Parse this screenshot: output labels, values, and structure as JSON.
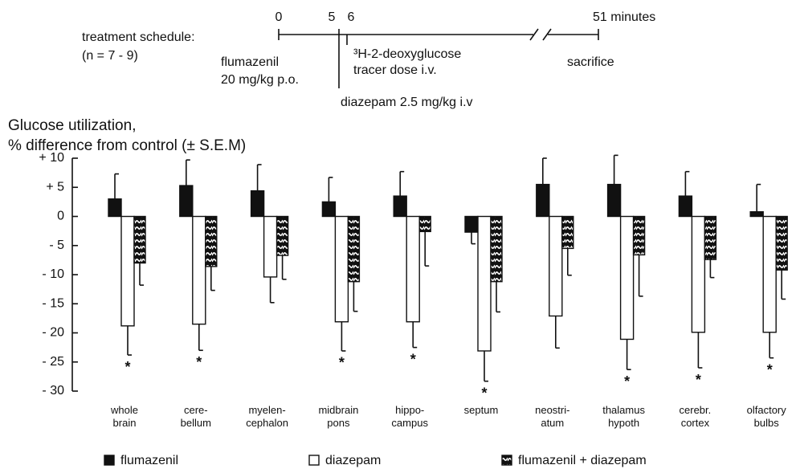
{
  "schedule": {
    "title": "treatment schedule:",
    "n": "(n = 7 - 9)",
    "timeline_labels": [
      "0",
      "5",
      "6",
      "51 minutes"
    ],
    "flumazenil_lines": [
      "flumazenil",
      "20 mg/kg p.o."
    ],
    "tracer_lines": [
      "³H-2-deoxyglucose",
      "tracer dose i.v."
    ],
    "sacrifice": "sacrifice",
    "diazepam": "diazepam 2.5 mg/kg i.v"
  },
  "chart_data": {
    "type": "bar",
    "ylabel_lines": [
      "Glucose utilization,",
      "% difference from control  (± S.E.M)"
    ],
    "categories": [
      "whole\nbrain",
      "cere-\nbellum",
      "myelen-\ncephalon",
      "midbrain\npons",
      "hippo-\ncampus",
      "septum",
      "neostri-\natum",
      "thalamus\nhypoth",
      "cerebr.\ncortex",
      "olfactory\nbulbs"
    ],
    "series": [
      {
        "name": "flumazenil",
        "color": "#111111",
        "hatched": false,
        "values": [
          3,
          5.3,
          4.4,
          2.5,
          3.5,
          -2.7,
          5.5,
          5.5,
          3.5,
          0.8
        ],
        "errors": [
          4.3,
          4.4,
          4.5,
          4.2,
          4.2,
          2,
          4.5,
          5,
          4.2,
          4.7
        ]
      },
      {
        "name": "diazepam",
        "color": "#ffffff",
        "hatched": false,
        "values": [
          -18.8,
          -18.5,
          -10.4,
          -18.1,
          -18.1,
          -23.1,
          -17.1,
          -21.1,
          -19.9,
          -19.9
        ],
        "errors": [
          5,
          4.5,
          4.4,
          5,
          4.4,
          5.2,
          5.5,
          5.2,
          6.1,
          4.4
        ]
      },
      {
        "name": "flumazenil + diazepam",
        "color": "#111111",
        "hatched": true,
        "values": [
          -8,
          -8.6,
          -6.7,
          -11.2,
          -2.6,
          -11.2,
          -5.5,
          -6.6,
          -7.4,
          -9.2
        ],
        "errors": [
          3.8,
          4.1,
          4.1,
          5.1,
          5.9,
          5.2,
          4.6,
          7.1,
          3.1,
          5
        ]
      }
    ],
    "significance": [
      "*",
      "*",
      null,
      "*",
      "*",
      "*",
      null,
      "*",
      "*",
      "*"
    ],
    "ylim": [
      -30,
      10
    ],
    "yticks": [
      {
        "value": 10,
        "label": "+ 10"
      },
      {
        "value": 5,
        "label": "+ 5"
      },
      0,
      {
        "value": -5,
        "label": "- 5"
      },
      {
        "value": -10,
        "label": "- 10"
      },
      {
        "value": -15,
        "label": "- 15"
      },
      {
        "value": -20,
        "label": "- 20"
      },
      {
        "value": -25,
        "label": "- 25"
      },
      {
        "value": -30,
        "label": "- 30"
      }
    ]
  }
}
